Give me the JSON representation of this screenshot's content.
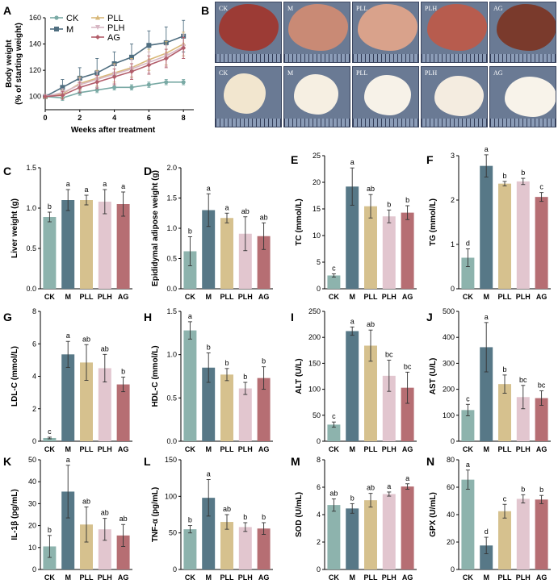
{
  "panel_labels": {
    "A": "A",
    "B": "B",
    "C": "C",
    "D": "D",
    "E": "E",
    "F": "F",
    "G": "G",
    "H": "H",
    "I": "I",
    "J": "J",
    "K": "K",
    "L": "L",
    "M": "M",
    "N": "N"
  },
  "photo_panel": {
    "row1_labels": [
      "CK",
      "M",
      "PLL",
      "PLH",
      "AG"
    ],
    "row2_labels": [
      "CK",
      "M",
      "PLL",
      "PLH",
      "AG"
    ],
    "row1_colors": [
      "#9c3b35",
      "#c98a75",
      "#d9a28b",
      "#b75c4e",
      "#7a3a2c"
    ],
    "row2_colors": [
      "#f2e6cf",
      "#f6efe2",
      "#f7f2e8",
      "#f4ece0",
      "#f8f3ea"
    ]
  },
  "chart_data": [
    {
      "id": "A",
      "type": "line",
      "xlabel": "Weeks after treatment",
      "ylabel_line1": "Body weight",
      "ylabel_line2": "(% of starting weight)",
      "x": [
        0,
        1,
        2,
        3,
        4,
        5,
        6,
        7,
        8
      ],
      "xlim": [
        0,
        8.6
      ],
      "xticks": [
        0,
        2,
        4,
        6,
        8
      ],
      "ylim": [
        90,
        160
      ],
      "yticks": [
        100,
        120,
        140,
        160
      ],
      "series": [
        {
          "name": "CK",
          "color": "#7aaaa5",
          "marker": "circle",
          "values": [
            100,
            99,
            103,
            105,
            107,
            107,
            109,
            111,
            111
          ],
          "errors": [
            0,
            2,
            2,
            2,
            2,
            2,
            2,
            2,
            2
          ]
        },
        {
          "name": "M",
          "color": "#4f6e80",
          "marker": "square",
          "values": [
            100,
            107,
            114,
            118,
            125,
            130,
            139,
            141,
            146
          ],
          "errors": [
            0,
            6,
            8,
            11,
            9,
            10,
            11,
            12,
            12
          ]
        },
        {
          "name": "PLL",
          "color": "#d8b879",
          "marker": "triangle",
          "values": [
            100,
            102,
            110,
            114,
            118,
            122,
            128,
            133,
            140
          ],
          "errors": [
            0,
            3,
            5,
            6,
            7,
            7,
            8,
            9,
            9
          ]
        },
        {
          "name": "PLH",
          "color": "#d7b7c4",
          "marker": "triangle-down",
          "values": [
            100,
            103,
            109,
            113,
            117,
            121,
            126,
            131,
            138
          ],
          "errors": [
            0,
            3,
            5,
            6,
            7,
            7,
            8,
            8,
            9
          ]
        },
        {
          "name": "AG",
          "color": "#b25d6a",
          "marker": "diamond",
          "values": [
            100,
            101,
            107,
            111,
            115,
            119,
            124,
            129,
            137
          ],
          "errors": [
            0,
            3,
            4,
            5,
            6,
            6,
            7,
            7,
            8
          ]
        }
      ],
      "legend": [
        "CK",
        "M",
        "PLL",
        "PLH",
        "AG"
      ]
    },
    {
      "id": "C",
      "type": "bar",
      "ylabel": "Liver weight (g)",
      "ylim": [
        0,
        1.5
      ],
      "yticks": [
        "0.0",
        "0.5",
        "1.0",
        "1.5"
      ],
      "categories": [
        "CK",
        "M",
        "PLL",
        "PLH",
        "AG"
      ],
      "values": [
        0.89,
        1.1,
        1.1,
        1.08,
        1.05
      ],
      "errors": [
        0.06,
        0.13,
        0.06,
        0.15,
        0.15
      ],
      "sig": [
        "b",
        "a",
        "a",
        "a",
        "a"
      ]
    },
    {
      "id": "D",
      "type": "bar",
      "ylabel": "Epididymal adipose weight (g)",
      "ylim": [
        0,
        2.0
      ],
      "yticks": [
        "0.0",
        "0.5",
        "1.0",
        "1.5",
        "2.0"
      ],
      "categories": [
        "CK",
        "M",
        "PLL",
        "PLH",
        "AG"
      ],
      "values": [
        0.62,
        1.3,
        1.17,
        0.91,
        0.87
      ],
      "errors": [
        0.24,
        0.27,
        0.08,
        0.28,
        0.22
      ],
      "sig": [
        "b",
        "a",
        "a",
        "ab",
        "ab"
      ]
    },
    {
      "id": "E",
      "type": "bar",
      "ylabel": "TC (mmol/L)",
      "ylim": [
        0,
        25
      ],
      "yticks": [
        "0",
        "5",
        "10",
        "15",
        "20",
        "25"
      ],
      "categories": [
        "CK",
        "M",
        "PLL",
        "PLH",
        "AG"
      ],
      "values": [
        2.5,
        19.2,
        15.5,
        13.6,
        14.3
      ],
      "errors": [
        0.3,
        3.5,
        2.2,
        1.2,
        1.3
      ],
      "sig": [
        "c",
        "a",
        "ab",
        "b",
        "b"
      ]
    },
    {
      "id": "F",
      "type": "bar",
      "ylabel": "TG (mmol/L)",
      "ylim": [
        0,
        3
      ],
      "yticks": [
        "0",
        "1",
        "2",
        "3"
      ],
      "categories": [
        "CK",
        "M",
        "PLL",
        "PLH",
        "AG"
      ],
      "values": [
        0.7,
        2.77,
        2.37,
        2.42,
        2.07
      ],
      "errors": [
        0.2,
        0.25,
        0.05,
        0.07,
        0.1
      ],
      "sig": [
        "d",
        "a",
        "b",
        "b",
        "c"
      ]
    },
    {
      "id": "G",
      "type": "bar",
      "ylabel": "LDL-C (mmol/L)",
      "ylim": [
        0,
        8
      ],
      "yticks": [
        "0",
        "2",
        "4",
        "6",
        "8"
      ],
      "categories": [
        "CK",
        "M",
        "PLL",
        "PLH",
        "AG"
      ],
      "values": [
        0.2,
        5.35,
        4.85,
        4.5,
        3.5
      ],
      "errors": [
        0.05,
        0.8,
        1.1,
        0.85,
        0.45
      ],
      "sig": [
        "c",
        "a",
        "ab",
        "ab",
        "b"
      ]
    },
    {
      "id": "H",
      "type": "bar",
      "ylabel": "HDL-C (mmol/L)",
      "ylim": [
        0,
        1.5
      ],
      "yticks": [
        "0.0",
        "0.5",
        "1.0",
        "1.5"
      ],
      "categories": [
        "CK",
        "M",
        "PLL",
        "PLH",
        "AG"
      ],
      "values": [
        1.28,
        0.85,
        0.77,
        0.61,
        0.73
      ],
      "errors": [
        0.1,
        0.17,
        0.07,
        0.07,
        0.13
      ],
      "sig": [
        "a",
        "b",
        "b",
        "b",
        "b"
      ]
    },
    {
      "id": "I",
      "type": "bar",
      "ylabel": "ALT (U/L)",
      "ylim": [
        0,
        250
      ],
      "yticks": [
        "0",
        "50",
        "100",
        "150",
        "200",
        "250"
      ],
      "categories": [
        "CK",
        "M",
        "PLL",
        "PLH",
        "AG"
      ],
      "values": [
        32,
        212,
        184,
        126,
        103
      ],
      "errors": [
        5,
        8,
        30,
        30,
        30
      ],
      "sig": [
        "c",
        "a",
        "ab",
        "bc",
        "bc"
      ]
    },
    {
      "id": "J",
      "type": "bar",
      "ylabel": "AST (U/L)",
      "ylim": [
        0,
        500
      ],
      "yticks": [
        "0",
        "100",
        "200",
        "300",
        "400",
        "500"
      ],
      "categories": [
        "CK",
        "M",
        "PLL",
        "PLH",
        "AG"
      ],
      "values": [
        120,
        362,
        220,
        170,
        166
      ],
      "errors": [
        22,
        95,
        35,
        45,
        28
      ],
      "sig": [
        "c",
        "a",
        "b",
        "bc",
        "bc"
      ]
    },
    {
      "id": "K",
      "type": "bar",
      "ylabel": "IL-1β (pg/mL)",
      "ylim": [
        0,
        50
      ],
      "yticks": [
        "0",
        "10",
        "20",
        "30",
        "40",
        "50"
      ],
      "categories": [
        "CK",
        "M",
        "PLL",
        "PLH",
        "AG"
      ],
      "values": [
        10.5,
        35.5,
        20.5,
        18.3,
        15.5
      ],
      "errors": [
        5,
        12,
        8,
        5,
        5
      ],
      "sig": [
        "b",
        "a",
        "ab",
        "ab",
        "ab"
      ]
    },
    {
      "id": "L",
      "type": "bar",
      "ylabel": "TNF-α (pg/mL)",
      "ylim": [
        0,
        150
      ],
      "yticks": [
        "0",
        "50",
        "100",
        "150"
      ],
      "categories": [
        "CK",
        "M",
        "PLL",
        "PLH",
        "AG"
      ],
      "values": [
        55,
        98,
        65,
        58,
        56
      ],
      "errors": [
        5,
        25,
        10,
        6,
        8
      ],
      "sig": [
        "b",
        "a",
        "ab",
        "b",
        "b"
      ]
    },
    {
      "id": "M",
      "type": "bar",
      "ylabel": "SOD (U/mL)",
      "ylim": [
        0,
        8
      ],
      "yticks": [
        "0",
        "2",
        "4",
        "6",
        "8"
      ],
      "categories": [
        "CK",
        "M",
        "PLL",
        "PLH",
        "AG"
      ],
      "values": [
        4.7,
        4.45,
        5.05,
        5.5,
        6.05
      ],
      "errors": [
        0.45,
        0.35,
        0.5,
        0.15,
        0.2
      ],
      "sig": [
        "ab",
        "b",
        "ab",
        "a",
        "a"
      ]
    },
    {
      "id": "N",
      "type": "bar",
      "ylabel": "GPX (U/mL)",
      "ylim": [
        0,
        80
      ],
      "yticks": [
        "0",
        "20",
        "40",
        "60",
        "80"
      ],
      "categories": [
        "CK",
        "M",
        "PLL",
        "PLH",
        "AG"
      ],
      "values": [
        65.5,
        17.5,
        42.5,
        51.5,
        51
      ],
      "errors": [
        7,
        6,
        5,
        3,
        3
      ],
      "sig": [
        "a",
        "d",
        "c",
        "b",
        "b"
      ]
    }
  ],
  "colors": {
    "CK": "#8db3ad",
    "M": "#577887",
    "PLL": "#d6c18e",
    "PLH": "#e2c6cf",
    "AG": "#b66e73",
    "errbar": "#333333"
  }
}
